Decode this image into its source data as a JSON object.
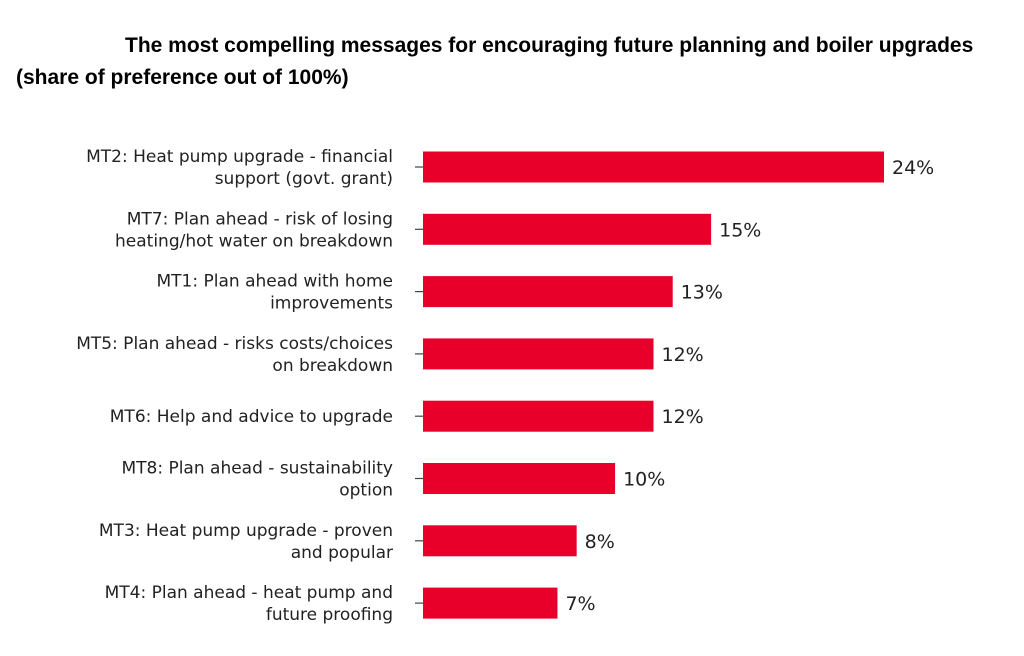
{
  "chart_data": {
    "type": "bar",
    "orientation": "horizontal",
    "title": "The most compelling messages for encouraging future planning and boiler upgrades (share of preference out of 100%)",
    "categories": [
      [
        "MT2: Heat pump upgrade - financial",
        "support (govt. grant)"
      ],
      [
        "MT7: Plan ahead - risk of losing",
        "heating/hot water on breakdown"
      ],
      [
        "MT1: Plan ahead with home",
        "improvements"
      ],
      [
        "MT5: Plan ahead - risks costs/choices",
        "on breakdown"
      ],
      [
        "MT6: Help and advice to upgrade"
      ],
      [
        "MT8: Plan ahead - sustainability",
        "option"
      ],
      [
        "MT3: Heat pump upgrade - proven",
        "and popular"
      ],
      [
        "MT4: Plan ahead - heat pump and",
        "future proofing"
      ]
    ],
    "values": [
      24,
      15,
      13,
      12,
      12,
      10,
      8,
      7
    ],
    "value_labels": [
      "24%",
      "15%",
      "13%",
      "12%",
      "12%",
      "10%",
      "8%",
      "7%"
    ],
    "xlabel": "",
    "ylabel": "",
    "xlim": [
      0,
      24
    ],
    "grid": false,
    "legend": "none",
    "colors": {
      "bar": "#e8002a",
      "axis": "#444444",
      "text": "#222222"
    }
  }
}
